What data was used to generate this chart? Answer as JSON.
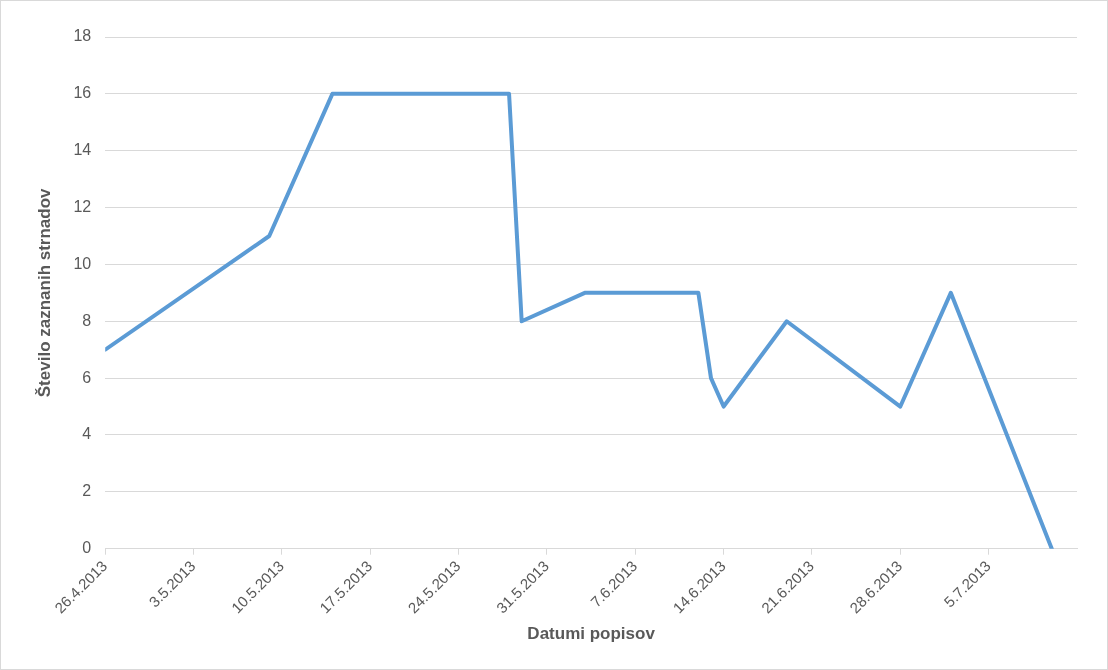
{
  "chart_data": {
    "type": "line",
    "xlabel": "Datumi popisov",
    "ylabel": "Število zaznanih strnadov",
    "x": [
      "2013-04-26",
      "2013-05-09",
      "2013-05-14",
      "2013-05-28",
      "2013-05-29",
      "2013-06-03",
      "2013-06-12",
      "2013-06-13",
      "2013-06-14",
      "2013-06-19",
      "2013-06-28",
      "2013-07-02",
      "2013-07-10"
    ],
    "series": [
      {
        "color": "#5b9bd5",
        "values": [
          7,
          11,
          16,
          16,
          8,
          9,
          9,
          6,
          5,
          8,
          5,
          9,
          0
        ]
      }
    ],
    "xlim": [
      "2013-04-26",
      "2013-07-12"
    ],
    "xticks": [
      {
        "value": "2013-04-26",
        "label": "26.4.2013"
      },
      {
        "value": "2013-05-03",
        "label": "3.5.2013"
      },
      {
        "value": "2013-05-10",
        "label": "10.5.2013"
      },
      {
        "value": "2013-05-17",
        "label": "17.5.2013"
      },
      {
        "value": "2013-05-24",
        "label": "24.5.2013"
      },
      {
        "value": "2013-05-31",
        "label": "31.5.2013"
      },
      {
        "value": "2013-06-07",
        "label": "7.6.2013"
      },
      {
        "value": "2013-06-14",
        "label": "14.6.2013"
      },
      {
        "value": "2013-06-21",
        "label": "21.6.2013"
      },
      {
        "value": "2013-06-28",
        "label": "28.6.2013"
      },
      {
        "value": "2013-07-05",
        "label": "5.7.2013"
      }
    ],
    "ylim": [
      0,
      18
    ],
    "yticks": [
      0,
      2,
      4,
      6,
      8,
      10,
      12,
      14,
      16,
      18
    ],
    "grid": "y",
    "legend": false,
    "marker": "none",
    "line_style": "solid"
  }
}
